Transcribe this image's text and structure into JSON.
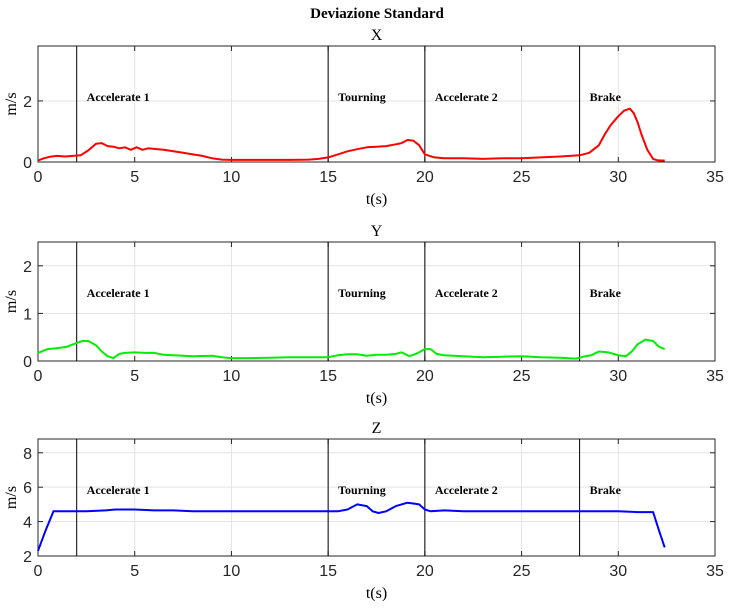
{
  "title": "Deviazione Standard",
  "chart_data": [
    {
      "type": "line",
      "title": "X",
      "xlabel": "t(s)",
      "ylabel": "m/s",
      "xlim": [
        0,
        35
      ],
      "ylim": [
        0,
        3.8
      ],
      "xticks": [
        0,
        5,
        10,
        15,
        20,
        25,
        30,
        35
      ],
      "yticks": [
        0,
        2
      ],
      "grid": true,
      "color": "#ff0000",
      "phase_lines": [
        2,
        15,
        20,
        28
      ],
      "phases": [
        "Accelerate 1",
        "Tourning",
        "Accelerate 2",
        "Brake"
      ],
      "series": [
        {
          "x": [
            0,
            0.3,
            0.6,
            1,
            1.4,
            1.8,
            2.2,
            2.6,
            3,
            3.3,
            3.6,
            3.9,
            4.2,
            4.5,
            4.8,
            5.1,
            5.4,
            5.7,
            6,
            6.5,
            7,
            7.5,
            8,
            8.5,
            9,
            9.5,
            10,
            11,
            12,
            13,
            14,
            14.5,
            15,
            15.5,
            16,
            16.5,
            17,
            17.5,
            18,
            18.5,
            18.8,
            19.1,
            19.4,
            19.7,
            20,
            20.5,
            21,
            22,
            23,
            24,
            25,
            26,
            27,
            28,
            28.5,
            29,
            29.3,
            29.6,
            30,
            30.3,
            30.6,
            30.8,
            31,
            31.2,
            31.5,
            31.8,
            32,
            32.2,
            32.4
          ],
          "y": [
            0.05,
            0.12,
            0.17,
            0.2,
            0.18,
            0.2,
            0.22,
            0.38,
            0.6,
            0.62,
            0.52,
            0.5,
            0.45,
            0.48,
            0.4,
            0.48,
            0.4,
            0.45,
            0.43,
            0.4,
            0.35,
            0.3,
            0.25,
            0.2,
            0.12,
            0.08,
            0.07,
            0.07,
            0.07,
            0.07,
            0.08,
            0.1,
            0.15,
            0.25,
            0.35,
            0.42,
            0.48,
            0.5,
            0.52,
            0.58,
            0.62,
            0.72,
            0.7,
            0.55,
            0.25,
            0.15,
            0.12,
            0.12,
            0.1,
            0.12,
            0.12,
            0.15,
            0.18,
            0.22,
            0.3,
            0.55,
            0.9,
            1.2,
            1.5,
            1.68,
            1.75,
            1.6,
            1.3,
            0.9,
            0.4,
            0.1,
            0.06,
            0.05,
            0.05
          ]
        }
      ]
    },
    {
      "type": "line",
      "title": "Y",
      "xlabel": "t(s)",
      "ylabel": "m/s",
      "xlim": [
        0,
        35
      ],
      "ylim": [
        0,
        2.5
      ],
      "xticks": [
        0,
        5,
        10,
        15,
        20,
        25,
        30,
        35
      ],
      "yticks": [
        0,
        1,
        2
      ],
      "grid": true,
      "color": "#00ee00",
      "phase_lines": [
        2,
        15,
        20,
        28
      ],
      "phases": [
        "Accelerate 1",
        "Tourning",
        "Accelerate 2",
        "Brake"
      ],
      "series": [
        {
          "x": [
            0,
            0.5,
            1,
            1.5,
            2,
            2.3,
            2.6,
            3,
            3.3,
            3.6,
            3.9,
            4.2,
            4.5,
            5,
            5.5,
            6,
            6.5,
            7,
            8,
            9,
            9.5,
            10,
            11,
            12,
            13,
            14,
            15,
            15.5,
            16,
            16.5,
            17,
            17.5,
            18,
            18.5,
            18.8,
            19.2,
            19.6,
            20,
            20.3,
            20.6,
            21,
            22,
            23,
            24,
            25,
            26,
            27,
            27.8,
            28,
            28.3,
            28.6,
            29,
            29.5,
            30,
            30.4,
            30.7,
            31,
            31.4,
            31.8,
            32.1,
            32.4
          ],
          "y": [
            0.17,
            0.25,
            0.27,
            0.3,
            0.38,
            0.42,
            0.42,
            0.33,
            0.2,
            0.1,
            0.06,
            0.15,
            0.17,
            0.18,
            0.17,
            0.17,
            0.13,
            0.12,
            0.1,
            0.11,
            0.08,
            0.06,
            0.06,
            0.07,
            0.08,
            0.08,
            0.08,
            0.12,
            0.14,
            0.14,
            0.11,
            0.13,
            0.13,
            0.15,
            0.18,
            0.1,
            0.16,
            0.25,
            0.25,
            0.15,
            0.12,
            0.1,
            0.08,
            0.09,
            0.1,
            0.08,
            0.07,
            0.05,
            0.07,
            0.1,
            0.12,
            0.2,
            0.18,
            0.12,
            0.1,
            0.2,
            0.35,
            0.45,
            0.42,
            0.3,
            0.25
          ]
        }
      ]
    },
    {
      "type": "line",
      "title": "Z",
      "xlabel": "t(s)",
      "ylabel": "m/s",
      "xlim": [
        0,
        35
      ],
      "ylim": [
        2,
        8.8
      ],
      "xticks": [
        0,
        5,
        10,
        15,
        20,
        25,
        30,
        35
      ],
      "yticks": [
        2,
        4,
        6,
        8
      ],
      "grid": true,
      "color": "#0000ff",
      "phase_lines": [
        2,
        15,
        20,
        28
      ],
      "phases": [
        "Accelerate 1",
        "Tourning",
        "Accelerate 2",
        "Brake"
      ],
      "series": [
        {
          "x": [
            0,
            0.4,
            0.8,
            1.5,
            2.5,
            3.5,
            4,
            5,
            6,
            7,
            8,
            9,
            10,
            11,
            12,
            13,
            14,
            15,
            15.5,
            16,
            16.5,
            17,
            17.3,
            17.6,
            18,
            18.5,
            18.8,
            19.1,
            19.4,
            19.7,
            20,
            20.3,
            21,
            22,
            23,
            24,
            25,
            26,
            27,
            28,
            29,
            30,
            31,
            31.8,
            32.1,
            32.4
          ],
          "y": [
            2.3,
            3.5,
            4.6,
            4.6,
            4.6,
            4.65,
            4.7,
            4.7,
            4.65,
            4.65,
            4.6,
            4.6,
            4.6,
            4.6,
            4.6,
            4.6,
            4.6,
            4.6,
            4.6,
            4.7,
            5.0,
            4.9,
            4.6,
            4.5,
            4.6,
            4.9,
            5.0,
            5.1,
            5.05,
            5.0,
            4.7,
            4.6,
            4.65,
            4.6,
            4.6,
            4.6,
            4.6,
            4.6,
            4.6,
            4.6,
            4.6,
            4.6,
            4.55,
            4.55,
            3.5,
            2.5
          ]
        }
      ]
    }
  ]
}
